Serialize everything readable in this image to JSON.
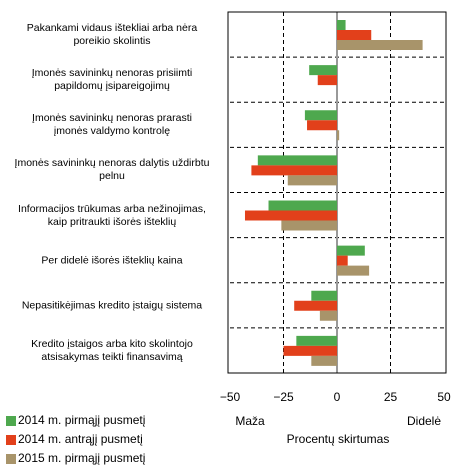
{
  "chart_data": {
    "type": "hbar",
    "categories": [
      "Pakankami vidaus ištekliai  arba nėra\nporeikio skolintis",
      "Įmonės savininkų nenoras prisiimti\npapildomų įsipareigojimų",
      "Įmonės savininkų nenoras prarasti\nįmonės valdymo kontrolę",
      "Įmonės savininkų nenoras dalytis uždirbtu\npelnu",
      "Informacijos trūkumas arba nežinojimas,\nkaip pritraukti išorės išteklių",
      "Per didelė išorės išteklių kaina",
      "Nepasitikėjimas kredito įstaigų sistema",
      "Kredito įstaigos arba kito skolintojo\natsisakymas teikti finansavimą"
    ],
    "series": [
      {
        "name": "2014 m. pirmąjį pusmetį",
        "color": "#4ea84e",
        "values": [
          4,
          -13,
          -15,
          -37,
          -32,
          13,
          -12,
          -19
        ]
      },
      {
        "name": "2014 m. antrąjį pusmetį",
        "color": "#e2401b",
        "values": [
          16,
          -9,
          -14,
          -40,
          -43,
          5,
          -20,
          -25
        ]
      },
      {
        "name": "2015 m. pirmąjį pusmetį",
        "color": "#a8946a",
        "values": [
          40,
          0,
          1,
          -23,
          -26,
          15,
          -8,
          -12
        ]
      }
    ],
    "xlim": [
      -50,
      50
    ],
    "xticks": [
      {
        "value": -50,
        "label": "−50"
      },
      {
        "value": -25,
        "label": "−25"
      },
      0,
      25,
      50
    ],
    "xlabel": "Procentų skirtumas",
    "annotations": [
      "Maža",
      "Didelė"
    ],
    "grid": true
  }
}
